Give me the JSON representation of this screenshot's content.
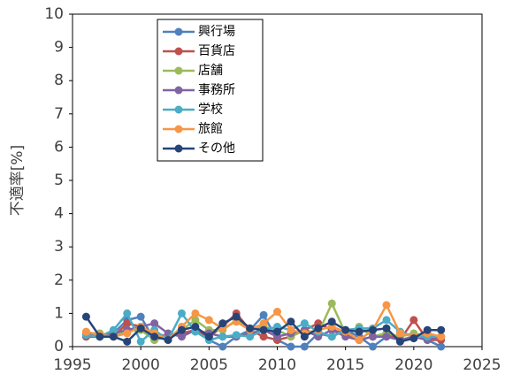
{
  "chart_data": {
    "type": "line",
    "y_label": "不適率[%]",
    "x": [
      1996,
      1997,
      1998,
      1999,
      2000,
      2001,
      2002,
      2003,
      2004,
      2005,
      2006,
      2007,
      2008,
      2009,
      2010,
      2011,
      2012,
      2013,
      2014,
      2015,
      2016,
      2017,
      2018,
      2019,
      2020,
      2021,
      2022
    ],
    "series": [
      {
        "name": "興行場",
        "color": "#4f81bd",
        "values": [
          0.3,
          0.3,
          0.4,
          0.8,
          0.9,
          0.2,
          0.3,
          0.4,
          0.5,
          0.2,
          0.0,
          0.3,
          0.5,
          0.95,
          0.2,
          0.0,
          0.0,
          0.4,
          0.3,
          0.5,
          0.3,
          0.0,
          0.3,
          0.2,
          0.3,
          0.2,
          0.0
        ]
      },
      {
        "name": "百貨店",
        "color": "#c0504d",
        "values": [
          0.3,
          0.3,
          0.3,
          0.7,
          0.6,
          0.4,
          0.3,
          0.4,
          0.5,
          0.3,
          0.6,
          1.0,
          0.5,
          0.3,
          0.2,
          0.3,
          0.5,
          0.7,
          0.5,
          0.4,
          0.2,
          0.3,
          0.4,
          0.2,
          0.8,
          0.2,
          0.2
        ]
      },
      {
        "name": "店舗",
        "color": "#9bbb59",
        "values": [
          0.4,
          0.4,
          0.3,
          0.5,
          0.5,
          0.2,
          0.3,
          0.5,
          0.8,
          0.5,
          0.5,
          0.8,
          0.5,
          0.6,
          0.5,
          0.3,
          0.5,
          0.4,
          1.3,
          0.4,
          0.6,
          0.3,
          0.4,
          0.3,
          0.4,
          0.3,
          0.3
        ]
      },
      {
        "name": "事務所",
        "color": "#8064a2",
        "values": [
          0.4,
          0.3,
          0.4,
          0.5,
          0.6,
          0.7,
          0.4,
          0.3,
          0.5,
          0.4,
          0.3,
          0.3,
          0.4,
          0.5,
          0.3,
          0.4,
          0.5,
          0.3,
          0.5,
          0.3,
          0.2,
          0.3,
          0.3,
          0.2,
          0.3,
          0.2,
          0.3
        ]
      },
      {
        "name": "学校",
        "color": "#4bacc6",
        "values": [
          0.35,
          0.3,
          0.5,
          1.0,
          0.15,
          0.5,
          0.2,
          1.0,
          0.45,
          0.2,
          0.3,
          0.35,
          0.3,
          0.5,
          0.6,
          0.5,
          0.7,
          0.45,
          0.3,
          0.5,
          0.55,
          0.55,
          0.8,
          0.45,
          0.3,
          0.3,
          0.3
        ]
      },
      {
        "name": "旅館",
        "color": "#f79646",
        "values": [
          0.45,
          0.35,
          0.3,
          0.4,
          0.6,
          0.4,
          0.2,
          0.6,
          1.0,
          0.8,
          0.55,
          0.75,
          0.5,
          0.7,
          1.05,
          0.5,
          0.4,
          0.5,
          0.6,
          0.45,
          0.2,
          0.5,
          1.25,
          0.4,
          0.3,
          0.4,
          0.3
        ]
      },
      {
        "name": "その他",
        "color": "#264478",
        "values": [
          0.9,
          0.3,
          0.3,
          0.15,
          0.55,
          0.3,
          0.2,
          0.5,
          0.6,
          0.3,
          0.7,
          0.9,
          0.55,
          0.5,
          0.45,
          0.75,
          0.3,
          0.55,
          0.75,
          0.5,
          0.45,
          0.5,
          0.55,
          0.15,
          0.25,
          0.5,
          0.5
        ]
      }
    ],
    "xlim": [
      1995,
      2025
    ],
    "xticks": [
      1995,
      2000,
      2005,
      2010,
      2015,
      2020,
      2025
    ],
    "ylim": [
      0,
      10
    ],
    "yticks": [
      0,
      1,
      2,
      3,
      4,
      5,
      6,
      7,
      8,
      9,
      10
    ],
    "grid": false,
    "legend": "top"
  }
}
